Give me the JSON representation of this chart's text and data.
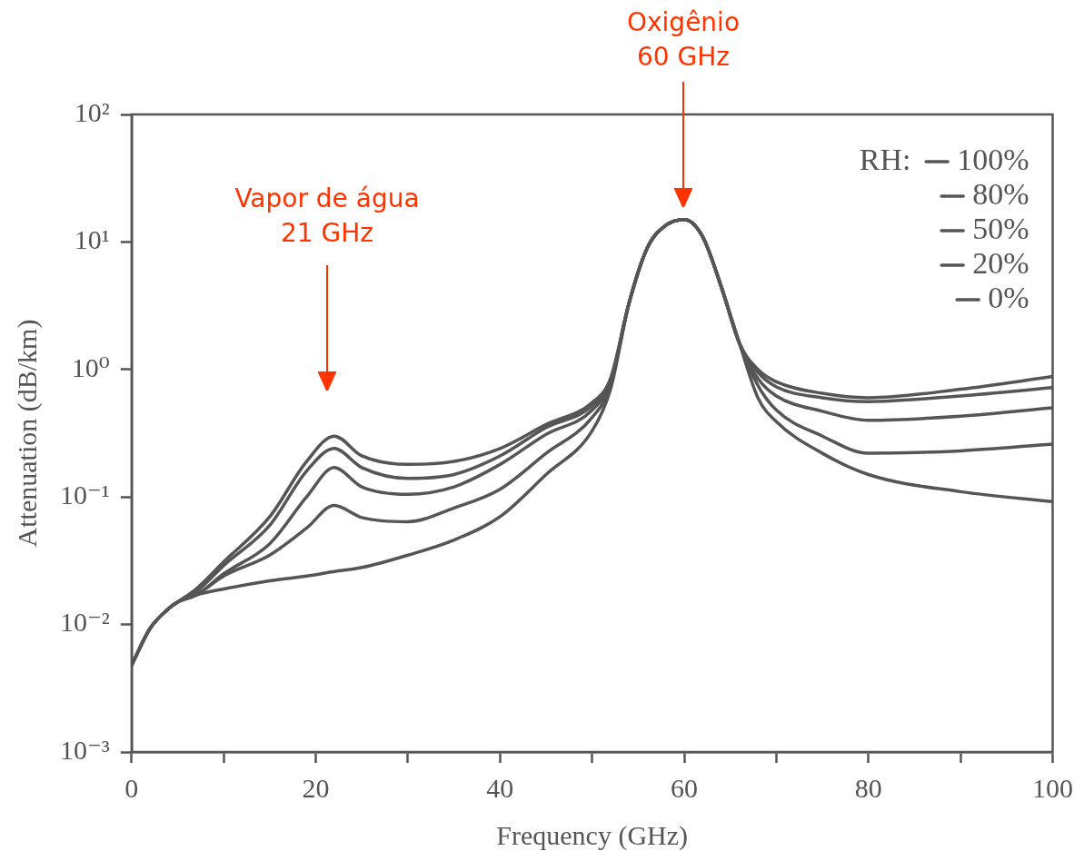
{
  "chart_data": {
    "type": "line",
    "xlabel": "Frequency (GHz)",
    "ylabel": "Attenuation (dB/km)",
    "legend_title": "RH:",
    "legend": "top right",
    "log": "y",
    "marker": "none",
    "line_style": "solid",
    "xlim": [
      0,
      100
    ],
    "ylim": [
      0.001,
      100
    ],
    "xticks": [
      0,
      {
        "value": 10,
        "label": null
      },
      20,
      {
        "value": 30,
        "label": null
      },
      40,
      {
        "value": 50,
        "label": null
      },
      60,
      {
        "value": 70,
        "label": null
      },
      80,
      {
        "value": 90,
        "label": null
      },
      100
    ],
    "yticks": [
      {
        "value": 0.001,
        "label": "10⁻³"
      },
      {
        "value": 0.01,
        "label": "10⁻²"
      },
      {
        "value": 0.1,
        "label": "10⁻¹"
      },
      {
        "value": 1,
        "label": "10⁰"
      },
      {
        "value": 10,
        "label": "10¹"
      },
      {
        "value": 100,
        "label": "10²"
      }
    ],
    "x": [
      0,
      2,
      4,
      5,
      7,
      10,
      15,
      19,
      22,
      25,
      30,
      35,
      40,
      45,
      50,
      52,
      54,
      56,
      58,
      60,
      62,
      64,
      66,
      68,
      70,
      75,
      80,
      90,
      100
    ],
    "series": [
      {
        "name": "100%",
        "color": "#555555",
        "values": [
          0.0048,
          0.0093,
          0.0133,
          0.015,
          0.019,
          0.031,
          0.07,
          0.19,
          0.3,
          0.21,
          0.18,
          0.19,
          0.24,
          0.37,
          0.55,
          0.85,
          3.3,
          9,
          13.5,
          15,
          11,
          4.5,
          1.6,
          1.0,
          0.8,
          0.65,
          0.6,
          0.7,
          0.88
        ]
      },
      {
        "name": "80%",
        "color": "#555555",
        "values": [
          0.0048,
          0.0093,
          0.0133,
          0.015,
          0.018,
          0.029,
          0.06,
          0.16,
          0.24,
          0.17,
          0.14,
          0.15,
          0.21,
          0.35,
          0.52,
          0.83,
          3.3,
          9,
          13.5,
          15,
          11,
          4.5,
          1.6,
          0.95,
          0.73,
          0.6,
          0.56,
          0.62,
          0.72
        ]
      },
      {
        "name": "50%",
        "color": "#555555",
        "values": [
          0.0048,
          0.0093,
          0.0133,
          0.015,
          0.017,
          0.025,
          0.043,
          0.1,
          0.17,
          0.12,
          0.105,
          0.12,
          0.18,
          0.31,
          0.48,
          0.8,
          3.3,
          9,
          13.5,
          15,
          11,
          4.5,
          1.6,
          0.85,
          0.62,
          0.47,
          0.4,
          0.43,
          0.5
        ]
      },
      {
        "name": "20%",
        "color": "#555555",
        "values": [
          0.0048,
          0.0093,
          0.0133,
          0.015,
          0.017,
          0.024,
          0.035,
          0.057,
          0.086,
          0.069,
          0.064,
          0.082,
          0.115,
          0.22,
          0.42,
          0.75,
          3.3,
          9,
          13.5,
          15,
          11,
          4.5,
          1.6,
          0.75,
          0.48,
          0.3,
          0.22,
          0.23,
          0.26
        ]
      },
      {
        "name": "0%",
        "color": "#555555",
        "values": [
          0.0048,
          0.0093,
          0.0133,
          0.015,
          0.017,
          0.019,
          0.022,
          0.024,
          0.026,
          0.028,
          0.035,
          0.046,
          0.07,
          0.15,
          0.33,
          0.7,
          3.3,
          9,
          13.5,
          15,
          11,
          4.5,
          1.6,
          0.6,
          0.39,
          0.22,
          0.15,
          0.11,
          0.092
        ]
      }
    ],
    "annotations": [
      "Vapor de água\n21 GHz",
      "Oxigênio\n60 GHz"
    ]
  }
}
